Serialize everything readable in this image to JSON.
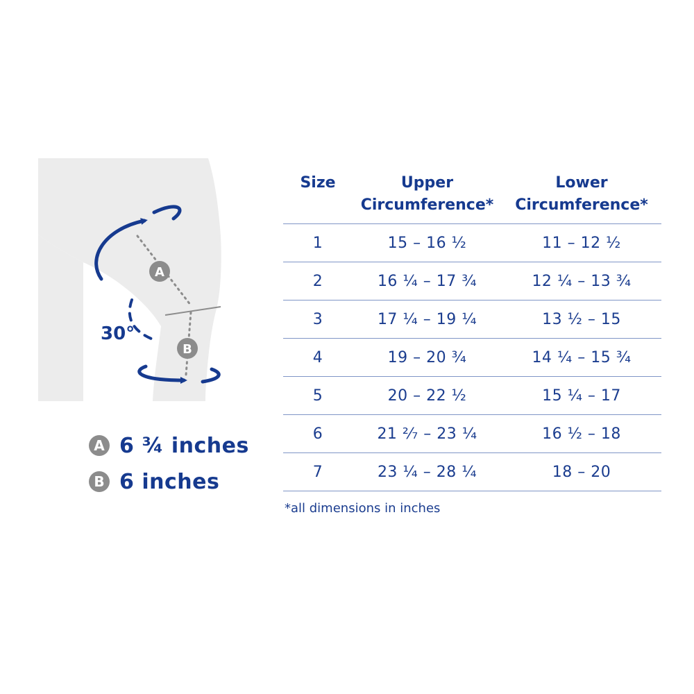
{
  "diagram": {
    "angle_label": "30°",
    "marker_a": "A",
    "marker_b": "B"
  },
  "legend": [
    {
      "badge": "A",
      "text": "6 ¾ inches"
    },
    {
      "badge": "B",
      "text": "6 inches"
    }
  ],
  "table": {
    "headers": {
      "size": "Size",
      "upper_line1": "Upper",
      "upper_line2": "Circumference*",
      "lower_line1": "Lower",
      "lower_line2": "Circumference*"
    },
    "rows": [
      {
        "size": "1",
        "upper": "15 – 16 ½",
        "lower": "11 – 12 ½"
      },
      {
        "size": "2",
        "upper": "16 ¼ – 17 ¾",
        "lower": "12 ¼ – 13 ¾"
      },
      {
        "size": "3",
        "upper": "17 ¼ – 19 ¼",
        "lower": "13 ½ – 15"
      },
      {
        "size": "4",
        "upper": "19 – 20 ¾",
        "lower": "14 ¼ – 15 ¾"
      },
      {
        "size": "5",
        "upper": "20 – 22 ½",
        "lower": "15 ¼ – 17"
      },
      {
        "size": "6",
        "upper": "21 ²⁄₇ – 23 ¼",
        "lower": "16 ½ – 18"
      },
      {
        "size": "7",
        "upper": "23 ¼ – 28 ¼",
        "lower": "18 – 20"
      }
    ]
  },
  "footnote": "*all dimensions in inches",
  "colors": {
    "brand_blue": "#163a8f",
    "leg_gray": "#ececec",
    "marker_gray": "#8c8c8c",
    "rule_blue": "#7f95c6"
  }
}
